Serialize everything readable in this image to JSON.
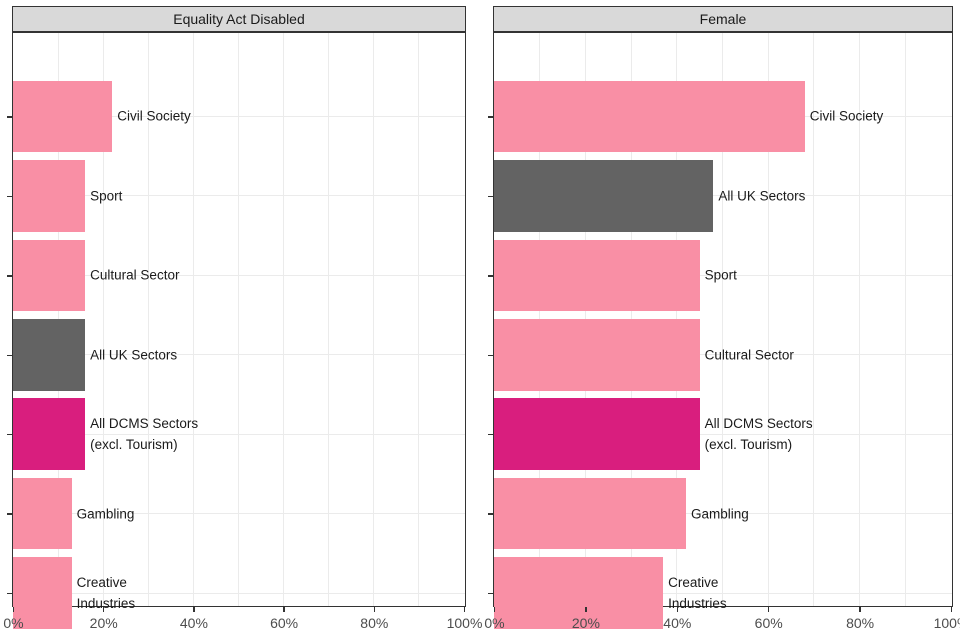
{
  "figure": {
    "background": "#FFFFFF",
    "panel_border_color": "#333333",
    "grid_color": "#EBEBEB",
    "strip_background": "#D9D9D9",
    "strip_text_color": "#1A1A1A",
    "bar_label_color": "#1A1A1A",
    "axis_text_color": "#4D4D4D",
    "tick_mark_color": "#333333",
    "colors": {
      "dcms_pink": "#F98FA5",
      "benchmark_grey": "#636363",
      "dcms_magenta": "#D91E7E"
    }
  },
  "chart_data": [
    {
      "type": "bar",
      "orientation": "horizontal",
      "title": "Equality Act Disabled",
      "xlabel": "",
      "ylabel": "",
      "xlim": [
        0,
        100
      ],
      "x_ticks": [
        0,
        20,
        40,
        60,
        80,
        100
      ],
      "x_tick_labels": [
        "0%",
        "20%",
        "40%",
        "60%",
        "80%",
        "100%"
      ],
      "x_minor_ticks": [
        10,
        30,
        50,
        70,
        90
      ],
      "grid": true,
      "legend": "none",
      "bars": [
        {
          "label": "Civil Society",
          "value": 22,
          "color": "#F98FA5"
        },
        {
          "label": "Sport",
          "value": 16,
          "color": "#F98FA5"
        },
        {
          "label": "Cultural Sector",
          "value": 16,
          "color": "#F98FA5"
        },
        {
          "label": "All UK Sectors",
          "value": 16,
          "color": "#636363"
        },
        {
          "label": "All DCMS Sectors\n(excl. Tourism)",
          "value": 16,
          "color": "#D91E7E"
        },
        {
          "label": "Gambling",
          "value": 13,
          "color": "#F98FA5"
        },
        {
          "label": "Creative\nIndustries",
          "value": 13,
          "color": "#F98FA5"
        }
      ]
    },
    {
      "type": "bar",
      "orientation": "horizontal",
      "title": "Female",
      "xlabel": "",
      "ylabel": "",
      "xlim": [
        0,
        100
      ],
      "x_ticks": [
        0,
        20,
        40,
        60,
        80,
        100
      ],
      "x_tick_labels": [
        "0%",
        "20%",
        "40%",
        "60%",
        "80%",
        "100%"
      ],
      "x_minor_ticks": [
        10,
        30,
        50,
        70,
        90
      ],
      "grid": true,
      "legend": "none",
      "bars": [
        {
          "label": "Civil Society",
          "value": 68,
          "color": "#F98FA5"
        },
        {
          "label": "All UK Sectors",
          "value": 48,
          "color": "#636363"
        },
        {
          "label": "Sport",
          "value": 45,
          "color": "#F98FA5"
        },
        {
          "label": "Cultural Sector",
          "value": 45,
          "color": "#F98FA5"
        },
        {
          "label": "All DCMS Sectors\n(excl. Tourism)",
          "value": 45,
          "color": "#D91E7E"
        },
        {
          "label": "Gambling",
          "value": 42,
          "color": "#F98FA5"
        },
        {
          "label": "Creative\nIndustries",
          "value": 37,
          "color": "#F98FA5"
        }
      ]
    }
  ]
}
